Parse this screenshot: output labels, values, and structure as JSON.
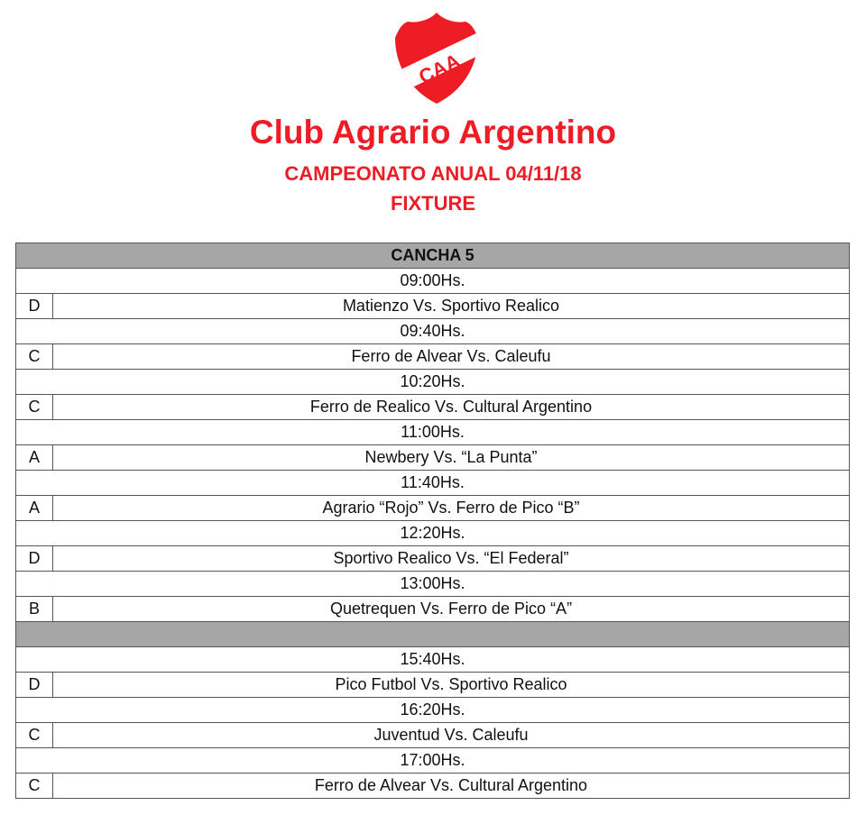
{
  "logo": {
    "text": "CAA",
    "color": "#ee1c25"
  },
  "header": {
    "title": "Club Agrario Argentino",
    "subtitle": "CAMPEONATO ANUAL 04/11/18",
    "section": "FIXTURE"
  },
  "table": {
    "court": "CANCHA 5",
    "rows": [
      {
        "time": "09:00Hs.",
        "cat": "D",
        "match": "Matienzo Vs. Sportivo Realico"
      },
      {
        "time": "09:40Hs.",
        "cat": "C",
        "match": "Ferro de Alvear Vs. Caleufu"
      },
      {
        "time": "10:20Hs.",
        "cat": "C",
        "match": "Ferro de Realico Vs. Cultural Argentino"
      },
      {
        "time": "11:00Hs.",
        "cat": "A",
        "match": "Newbery Vs. “La Punta”"
      },
      {
        "time": "11:40Hs.",
        "cat": "A",
        "match": "Agrario “Rojo” Vs. Ferro de Pico “B”"
      },
      {
        "time": "12:20Hs.",
        "cat": "D",
        "match": "Sportivo Realico Vs. “El Federal”"
      },
      {
        "time": "13:00Hs.",
        "cat": "B",
        "match": "Quetrequen Vs. Ferro de Pico “A”"
      },
      {
        "break": true
      },
      {
        "time": "15:40Hs.",
        "cat": "D",
        "match": "Pico Futbol Vs. Sportivo Realico"
      },
      {
        "time": "16:20Hs.",
        "cat": "C",
        "match": "Juventud Vs. Caleufu"
      },
      {
        "time": "17:00Hs.",
        "cat": "C",
        "match": "Ferro de Alvear Vs. Cultural Argentino"
      }
    ]
  }
}
